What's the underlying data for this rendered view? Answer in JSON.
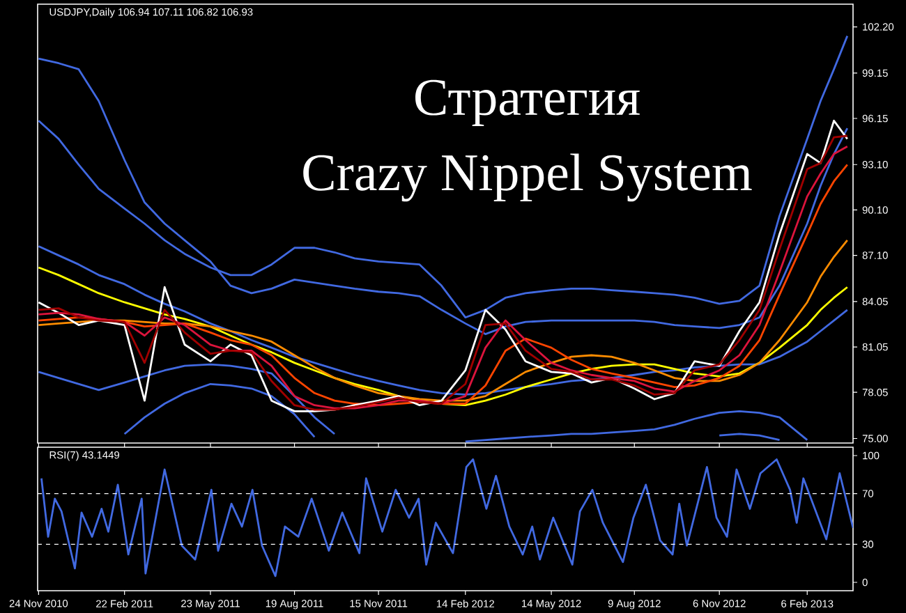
{
  "chart_data": [
    {
      "type": "line",
      "title": "Стратегия",
      "subtitle": "Crazy Nippel System",
      "annotations": [
        "USDJPY,Daily  106.94 107.11 106.82 106.93"
      ],
      "x": [
        "2010-11-24",
        "2010-12-15",
        "2011-01-05",
        "2011-01-26",
        "2011-02-22",
        "2011-03-15",
        "2011-04-05",
        "2011-04-26",
        "2011-05-23",
        "2011-06-13",
        "2011-07-05",
        "2011-07-26",
        "2011-08-19",
        "2011-09-09",
        "2011-09-30",
        "2011-10-21",
        "2011-11-15",
        "2011-12-06",
        "2011-12-28",
        "2012-01-20",
        "2012-02-14",
        "2012-03-06",
        "2012-03-27",
        "2012-04-17",
        "2012-05-14",
        "2012-06-04",
        "2012-06-25",
        "2012-07-16",
        "2012-08-09",
        "2012-08-30",
        "2012-09-20",
        "2012-10-11",
        "2012-11-06",
        "2012-11-27",
        "2012-12-18",
        "2013-01-08",
        "2013-02-06",
        "2013-02-20",
        "2013-03-06",
        "2013-03-20"
      ],
      "series": [
        {
          "color": "#4169e1",
          "values": [
            100.1,
            99.8,
            99.4,
            97.3,
            93.4,
            90.6,
            89.2,
            88.1,
            86.7,
            85.1,
            84.6,
            84.9,
            85.5,
            85.3,
            85.1,
            84.9,
            84.7,
            84.6,
            84.4,
            83.5,
            82.6,
            81.9,
            82.4,
            82.7,
            82.8,
            82.8,
            82.8,
            82.8,
            82.8,
            82.7,
            82.5,
            82.4,
            82.3,
            82.5,
            83.0,
            85.1,
            89.2,
            91.7,
            93.8,
            95.5
          ]
        },
        {
          "color": "#4169e1",
          "values": [
            96.0,
            94.8,
            93.1,
            91.5,
            90.2,
            89.2,
            88.1,
            87.2,
            86.3,
            85.8,
            85.8,
            86.5,
            87.6,
            87.6,
            87.3,
            86.9,
            86.7,
            86.6,
            86.5,
            85.1,
            83.0,
            83.5,
            84.3,
            84.6,
            84.8,
            84.9,
            84.9,
            84.8,
            84.7,
            84.6,
            84.5,
            84.3,
            83.9,
            84.1,
            85.1,
            89.7,
            94.8,
            97.3,
            99.4,
            101.6
          ]
        },
        {
          "color": "#4169e1",
          "values": [
            87.7,
            87.1,
            86.5,
            85.8,
            85.2,
            84.5,
            83.9,
            83.4,
            82.6,
            82.1,
            81.5,
            81.0,
            80.4,
            80.0,
            79.6,
            79.2,
            78.8,
            78.5,
            78.2,
            78.0,
            77.9,
            78.0,
            78.2,
            78.4,
            78.6,
            78.8,
            78.9,
            79.0,
            79.2,
            79.4,
            79.5,
            79.7,
            79.8,
            79.9,
            79.9,
            80.4,
            81.4,
            82.1,
            82.8,
            83.5
          ]
        },
        {
          "color": "#4169e1",
          "values": [
            79.4,
            79.0,
            78.6,
            78.2,
            78.7,
            79.1,
            79.5,
            79.8,
            79.9,
            79.8,
            79.6,
            79.3,
            77.8,
            76.4,
            75.3,
            null,
            null,
            null,
            null,
            null,
            74.8,
            74.9,
            75.0,
            75.1,
            75.2,
            75.3,
            75.3,
            75.4,
            75.5,
            75.6,
            75.9,
            76.3,
            76.7,
            76.8,
            76.7,
            76.4,
            74.9,
            null,
            null,
            null
          ]
        },
        {
          "color": "#4169e1",
          "values": [
            null,
            null,
            null,
            null,
            75.3,
            76.4,
            77.3,
            78.0,
            78.6,
            78.5,
            78.3,
            77.8,
            76.6,
            75.1,
            null,
            null,
            null,
            null,
            null,
            null,
            null,
            null,
            null,
            null,
            null,
            null,
            null,
            null,
            null,
            null,
            null,
            null,
            75.2,
            75.3,
            75.2,
            74.9,
            null,
            null,
            null,
            null
          ]
        },
        {
          "color": "#ffff00",
          "values": [
            86.3,
            85.8,
            85.2,
            84.6,
            84.0,
            83.6,
            83.2,
            82.9,
            82.4,
            81.8,
            81.2,
            80.7,
            80.0,
            79.5,
            79.0,
            78.6,
            78.2,
            77.8,
            77.5,
            77.3,
            77.2,
            77.5,
            77.9,
            78.4,
            78.9,
            79.3,
            79.6,
            79.8,
            79.9,
            79.9,
            79.6,
            79.3,
            79.1,
            79.3,
            80.0,
            81.0,
            82.5,
            83.5,
            84.3,
            85.0
          ]
        },
        {
          "color": "#ff8c00",
          "values": [
            82.5,
            82.6,
            82.7,
            82.8,
            82.8,
            82.7,
            82.6,
            82.6,
            82.4,
            82.1,
            81.8,
            81.4,
            80.5,
            79.7,
            79.0,
            78.5,
            78.0,
            77.8,
            77.6,
            77.5,
            77.5,
            77.8,
            78.6,
            79.4,
            80.0,
            80.4,
            80.5,
            80.4,
            80.0,
            79.5,
            79.0,
            78.8,
            78.8,
            79.2,
            80.0,
            81.5,
            84.0,
            85.7,
            87.0,
            88.1
          ]
        },
        {
          "color": "#ff4500",
          "values": [
            82.8,
            82.9,
            83.0,
            82.9,
            82.7,
            82.4,
            82.5,
            82.6,
            82.0,
            81.5,
            81.2,
            80.5,
            79.0,
            78.0,
            77.5,
            77.3,
            77.2,
            77.3,
            77.4,
            77.3,
            77.3,
            78.5,
            80.8,
            81.6,
            81.0,
            80.2,
            79.6,
            79.3,
            79.0,
            78.7,
            78.4,
            78.5,
            79.0,
            79.8,
            81.5,
            84.5,
            88.5,
            90.5,
            92.0,
            93.1
          ]
        },
        {
          "color": "#ffffff",
          "values": [
            84.0,
            83.3,
            82.5,
            82.8,
            82.5,
            77.5,
            85.0,
            81.2,
            80.1,
            81.2,
            80.5,
            77.5,
            76.8,
            76.8,
            76.9,
            77.2,
            77.5,
            77.8,
            77.2,
            77.5,
            79.5,
            83.5,
            82.2,
            80.1,
            79.4,
            79.3,
            78.7,
            79.0,
            78.3,
            77.6,
            78.0,
            80.1,
            79.8,
            82.1,
            84.0,
            88.5,
            93.8,
            93.2,
            96.0,
            94.8
          ]
        },
        {
          "color": "#dc143c",
          "values": [
            83.2,
            83.3,
            83.2,
            82.9,
            82.7,
            81.8,
            83.0,
            82.5,
            81.2,
            80.8,
            80.8,
            79.8,
            77.8,
            77.2,
            77.0,
            77.0,
            77.2,
            77.5,
            77.5,
            77.3,
            77.8,
            81.0,
            82.8,
            81.5,
            80.0,
            79.5,
            79.2,
            79.0,
            78.8,
            78.3,
            78.1,
            78.8,
            79.5,
            80.5,
            82.5,
            86.0,
            91.0,
            92.5,
            93.8,
            94.3
          ]
        },
        {
          "color": "#a00000",
          "values": [
            83.5,
            83.6,
            83.0,
            82.8,
            82.7,
            80.0,
            83.5,
            82.0,
            80.6,
            80.8,
            80.7,
            78.8,
            77.2,
            76.9,
            76.9,
            77.1,
            77.4,
            77.7,
            77.4,
            77.3,
            78.6,
            82.5,
            82.6,
            80.8,
            79.6,
            79.4,
            78.9,
            78.9,
            78.5,
            77.9,
            78.0,
            79.5,
            79.9,
            81.5,
            83.5,
            87.5,
            92.8,
            93.2,
            94.9,
            95.0
          ]
        }
      ],
      "xlim": [
        "2010-11-23",
        "2013-03-26"
      ],
      "ylim": [
        74.7,
        103.7
      ],
      "yticks": [
        {
          "value": 102.2,
          "label": "102.20"
        },
        99.15,
        96.15,
        {
          "value": 93.1,
          "label": "93.10"
        },
        {
          "value": 90.1,
          "label": "90.10"
        },
        {
          "value": 87.1,
          "label": "87.10"
        },
        84.05,
        81.05,
        78.05,
        {
          "value": 75,
          "label": "75.00"
        }
      ],
      "xticks": [
        {
          "value": "2010-11-24",
          "label": null
        },
        {
          "value": "2011-02-22",
          "label": null
        },
        {
          "value": "2011-05-23",
          "label": null
        },
        {
          "value": "2011-08-19",
          "label": null
        },
        {
          "value": "2011-11-15",
          "label": null
        },
        {
          "value": "2012-02-14",
          "label": null
        },
        {
          "value": "2012-05-14",
          "label": null
        },
        {
          "value": "2012-08-09",
          "label": null
        },
        {
          "value": "2012-11-06",
          "label": null
        },
        {
          "value": "2013-02-06",
          "label": null
        }
      ],
      "tick_labels": "y"
    },
    {
      "type": "line",
      "annotations": [
        "RSI(7) 43.1449"
      ],
      "x": [
        "2010-11-27",
        "2010-12-04",
        "2010-12-11",
        "2010-12-18",
        "2011-01-01",
        "2011-01-08",
        "2011-01-19",
        "2011-01-29",
        "2011-02-05",
        "2011-02-15",
        "2011-02-26",
        "2011-03-12",
        "2011-03-16",
        "2011-04-05",
        "2011-04-23",
        "2011-05-07",
        "2011-05-24",
        "2011-05-31",
        "2011-06-14",
        "2011-06-25",
        "2011-07-06",
        "2011-07-16",
        "2011-07-30",
        "2011-08-09",
        "2011-08-23",
        "2011-09-06",
        "2011-09-24",
        "2011-10-08",
        "2011-10-26",
        "2011-11-02",
        "2011-11-19",
        "2011-12-03",
        "2011-12-17",
        "2011-12-27",
        "2012-01-04",
        "2012-01-14",
        "2012-02-01",
        "2012-02-15",
        "2012-02-22",
        "2012-03-07",
        "2012-03-17",
        "2012-03-31",
        "2012-04-14",
        "2012-04-24",
        "2012-05-02",
        "2012-05-16",
        "2012-06-05",
        "2012-06-13",
        "2012-06-26",
        "2012-07-07",
        "2012-07-28",
        "2012-08-08",
        "2012-08-21",
        "2012-09-05",
        "2012-09-18",
        "2012-09-25",
        "2012-10-03",
        "2012-10-24",
        "2012-11-03",
        "2012-11-14",
        "2012-11-24",
        "2012-12-08",
        "2012-12-19",
        "2013-01-05",
        "2013-01-19",
        "2013-01-26",
        "2013-02-02",
        "2013-02-26",
        "2013-03-12",
        "2013-03-26"
      ],
      "series": [
        {
          "color": "#4169e1",
          "values": [
            82,
            36,
            66,
            56,
            11,
            55,
            36,
            58,
            40,
            77,
            22,
            66,
            7,
            89,
            29,
            18,
            73,
            25,
            62,
            44,
            73,
            29,
            5,
            44,
            36,
            66,
            25,
            55,
            23,
            82,
            40,
            73,
            51,
            66,
            14,
            47,
            23,
            91,
            97,
            58,
            84,
            44,
            22,
            44,
            18,
            51,
            14,
            56,
            73,
            47,
            16,
            51,
            77,
            33,
            22,
            62,
            29,
            91,
            51,
            36,
            89,
            58,
            86,
            97,
            73,
            47,
            82,
            34,
            86,
            43
          ]
        }
      ],
      "xlim": [
        "2010-11-23",
        "2013-03-26"
      ],
      "ylim": [
        -6.6,
        106.6
      ],
      "yticks": [
        0,
        30,
        70,
        100
      ],
      "xticks": [
        {
          "value": "2010-11-24",
          "label": "24 Nov 2010"
        },
        {
          "value": "2011-02-22",
          "label": "22 Feb 2011"
        },
        {
          "value": "2011-05-23",
          "label": "23 May 2011"
        },
        {
          "value": "2011-08-19",
          "label": "19 Aug 2011"
        },
        {
          "value": "2011-11-15",
          "label": "15 Nov 2011"
        },
        {
          "value": "2012-02-14",
          "label": "14 Feb 2012"
        },
        {
          "value": "2012-05-14",
          "label": "14 May 2012"
        },
        {
          "value": "2012-08-09",
          "label": "9 Aug 2012"
        },
        {
          "value": "2012-11-06",
          "label": "6 Nov 2012"
        },
        {
          "value": "2013-02-06",
          "label": "6 Feb 2013"
        }
      ],
      "ref_lines": [
        {
          "axis": "y",
          "value": 70,
          "color": "#ffffff",
          "line_style": "dashed"
        },
        {
          "axis": "y",
          "value": 30,
          "color": "#ffffff",
          "line_style": "dashed"
        }
      ]
    }
  ]
}
